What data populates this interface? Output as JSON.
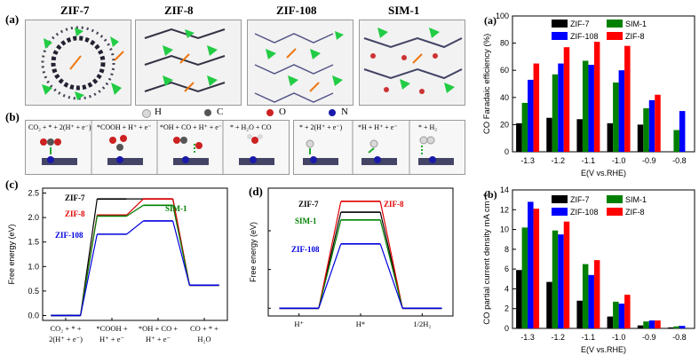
{
  "panel_a_structures": {
    "label": "(a)",
    "titles": [
      "ZIF-7",
      "ZIF-8",
      "ZIF-108",
      "SIM-1"
    ]
  },
  "panel_b": {
    "label": "(b)",
    "legend": [
      "H",
      "C",
      "O",
      "N"
    ],
    "colors": {
      "H": "#d9d9d9",
      "C": "#555555",
      "O": "#cc2222",
      "N": "#1a1aaa",
      "Zn": "#22cc44",
      "arrow": "#22aa33"
    },
    "steps_co2": [
      "CO₂ + * + 2(H⁺ + e⁻)",
      "*COOH + H⁺ + e⁻",
      "*OH + CO + H⁺ + e⁻",
      "* + H₂O + CO"
    ],
    "steps_h2": [
      "* + 2(H⁺ + e⁻)",
      "*H + H⁺ + e⁻",
      "* + H₂"
    ]
  },
  "panel_c": {
    "label": "(c)",
    "ylabel": "Free energy (eV)",
    "xticks": [
      "CO₂ + * +|2(H⁺ + e⁻)",
      "*COOH +|H⁺ + e⁻",
      "*OH + CO +|H⁺ + e⁻",
      "CO + * +|H₂O"
    ],
    "yticks": [
      "0.0",
      "0.5",
      "1.0",
      "1.5",
      "2.0",
      "2.5"
    ],
    "series_labels": [
      "ZIF-7",
      "ZIF-8",
      "SIM-1",
      "ZIF-108"
    ],
    "series_colors": [
      "#000000",
      "#e00000",
      "#008000",
      "#0000dd"
    ]
  },
  "panel_d": {
    "label": "(d)",
    "ylabel": "Free energy (eV)",
    "xticks": [
      "H⁺",
      "H*",
      "1/2H₂"
    ],
    "series_labels": [
      "ZIF-7",
      "ZIF-8",
      "SIM-1",
      "ZIF-108"
    ],
    "series_colors": [
      "#000000",
      "#e00000",
      "#008000",
      "#0000dd"
    ]
  },
  "chart_data": [
    {
      "type": "line",
      "panel": "(c)",
      "ylabel": "Free energy (eV)",
      "categories": [
        "CO₂ + * + 2(H⁺ + e⁻)",
        "*COOH + H⁺ + e⁻",
        "*OH + CO + H⁺ + e⁻",
        "CO + * + H₂O"
      ],
      "ylim": [
        -0.1,
        2.6
      ],
      "series": [
        {
          "name": "ZIF-7",
          "values": [
            0.0,
            2.38,
            2.38,
            0.62
          ]
        },
        {
          "name": "ZIF-8",
          "values": [
            0.0,
            2.05,
            2.38,
            0.62
          ]
        },
        {
          "name": "SIM-1",
          "values": [
            0.0,
            2.03,
            2.25,
            0.62
          ]
        },
        {
          "name": "ZIF-108",
          "values": [
            0.0,
            1.66,
            1.93,
            0.62
          ]
        }
      ]
    },
    {
      "type": "line",
      "panel": "(d)",
      "ylabel": "Free energy (eV)",
      "categories": [
        "H⁺",
        "H*",
        "1/2H₂"
      ],
      "ylim": [
        -0.1,
        1.55
      ],
      "series": [
        {
          "name": "ZIF-7",
          "values": [
            0.0,
            1.24,
            0.0
          ]
        },
        {
          "name": "ZIF-8",
          "values": [
            0.0,
            1.38,
            0.0
          ]
        },
        {
          "name": "SIM-1",
          "values": [
            0.0,
            1.14,
            0.0
          ]
        },
        {
          "name": "ZIF-108",
          "values": [
            0.0,
            0.83,
            0.0
          ]
        }
      ]
    },
    {
      "type": "bar",
      "panel": "(a)",
      "xlabel": "E(V vs.RHE)",
      "ylabel": "CO Faradaic efficiency (%)",
      "categories": [
        "-1.3",
        "-1.2",
        "-1.1",
        "-1.0",
        "-0.9",
        "-0.8"
      ],
      "ylim": [
        0,
        100
      ],
      "yticks": [
        "0",
        "20",
        "40",
        "60",
        "80",
        "100"
      ],
      "series": [
        {
          "name": "ZIF-7",
          "color": "#000000",
          "values": [
            21,
            25,
            24,
            21,
            20,
            null
          ]
        },
        {
          "name": "SIM-1",
          "color": "#008000",
          "values": [
            36,
            57,
            67,
            51,
            32,
            16
          ]
        },
        {
          "name": "ZIF-108",
          "color": "#0000ff",
          "values": [
            53,
            65,
            64,
            60,
            38,
            30
          ]
        },
        {
          "name": "ZIF-8",
          "color": "#ff0000",
          "values": [
            65,
            77,
            81,
            78,
            42,
            null
          ]
        }
      ]
    },
    {
      "type": "bar",
      "panel": "(b)",
      "xlabel": "E(V vs.RHE)",
      "ylabel": "CO partial current density mA cm⁻²",
      "categories": [
        "-1.3",
        "-1.2",
        "-1.1",
        "-1.0",
        "-0.9",
        "-0.8"
      ],
      "ylim": [
        0,
        14
      ],
      "yticks": [
        "0",
        "2",
        "4",
        "6",
        "8",
        "10",
        "12",
        "14"
      ],
      "series": [
        {
          "name": "ZIF-7",
          "color": "#000000",
          "values": [
            5.9,
            4.7,
            2.8,
            1.2,
            0.3,
            0.1
          ]
        },
        {
          "name": "SIM-1",
          "color": "#008000",
          "values": [
            10.2,
            9.9,
            6.5,
            2.7,
            0.7,
            0.2
          ]
        },
        {
          "name": "ZIF-108",
          "color": "#0000ff",
          "values": [
            12.8,
            9.5,
            5.4,
            2.5,
            0.8,
            0.25
          ]
        },
        {
          "name": "ZIF-8",
          "color": "#ff0000",
          "values": [
            12.1,
            10.8,
            6.9,
            3.4,
            0.8,
            null
          ]
        }
      ]
    }
  ]
}
